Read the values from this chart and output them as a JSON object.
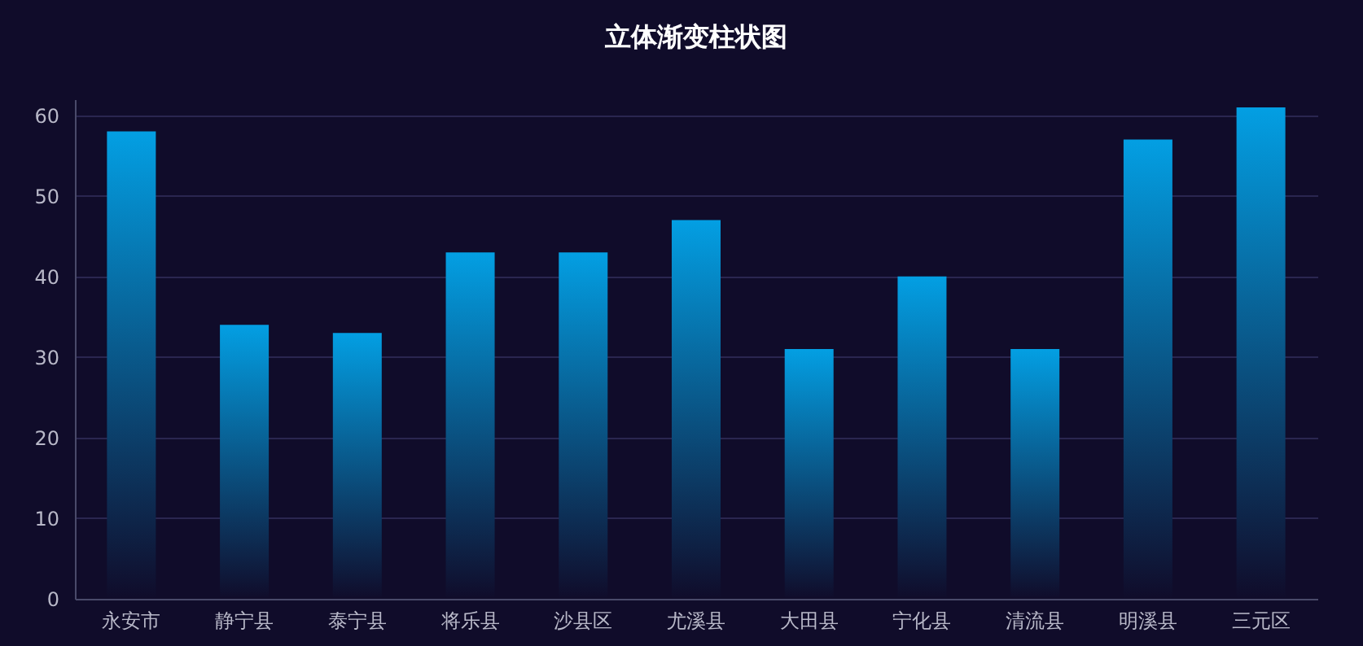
{
  "chart_data": {
    "type": "bar",
    "title": "立体渐变柱状图",
    "categories": [
      "永安市",
      "静宁县",
      "泰宁县",
      "将乐县",
      "沙县区",
      "尤溪县",
      "大田县",
      "宁化县",
      "清流县",
      "明溪县",
      "三元区"
    ],
    "values": [
      58,
      34,
      33,
      43,
      43,
      47,
      31,
      40,
      31,
      57,
      61
    ],
    "color": "#039fe3",
    "ylim": [
      0,
      62
    ],
    "yticks": [
      0,
      10,
      20,
      30,
      40,
      50,
      60
    ],
    "grid": "y"
  }
}
